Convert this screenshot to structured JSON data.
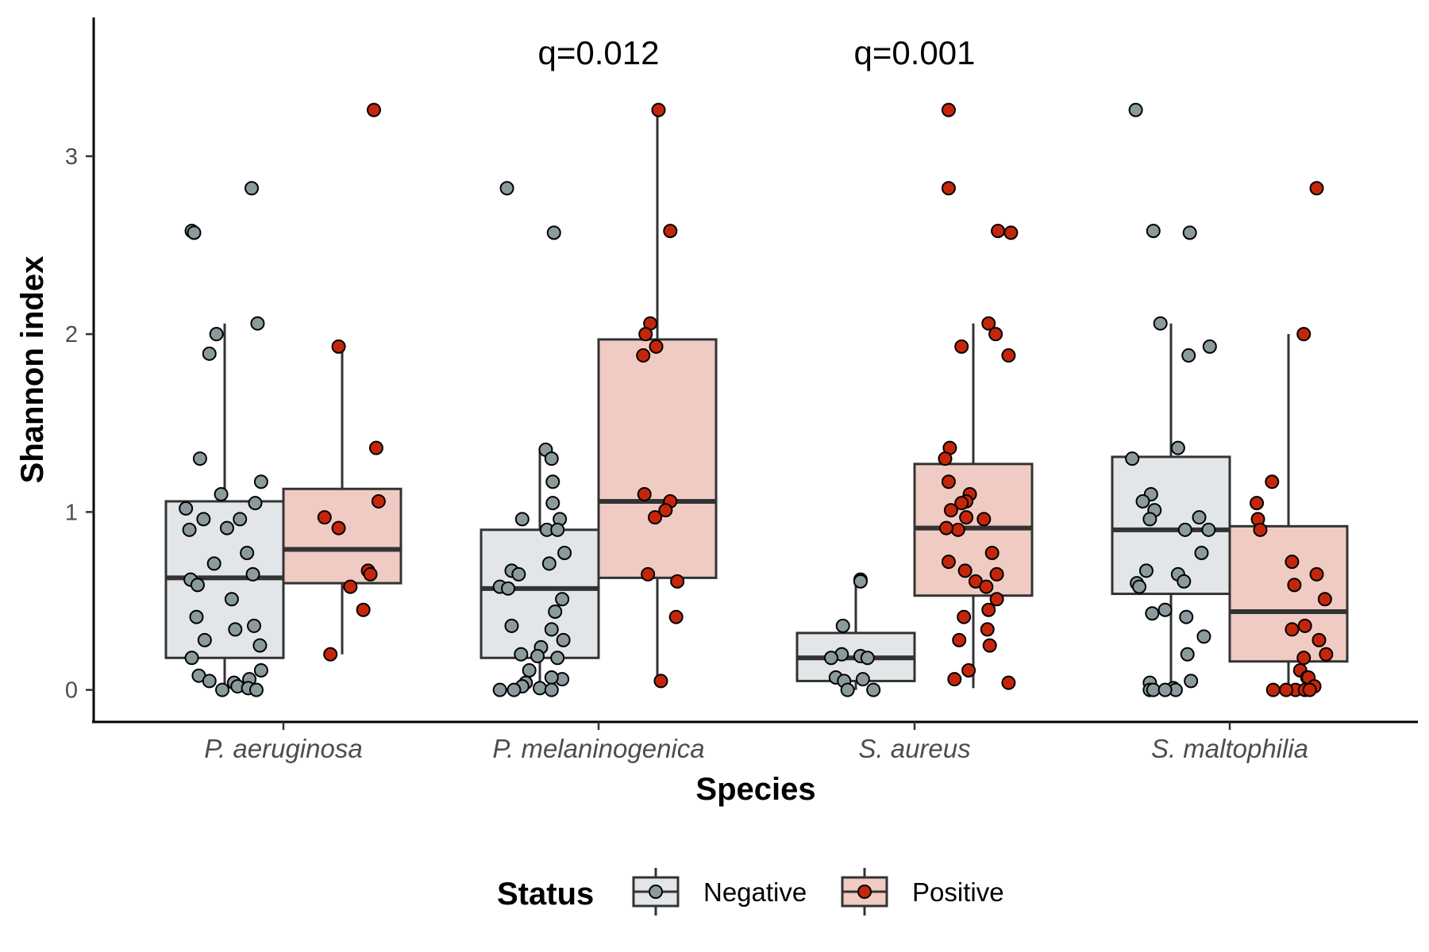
{
  "chart_data": {
    "type": "box",
    "xlabel": "Species",
    "ylabel": "Shannon index",
    "ylim": [
      -0.18,
      3.78
    ],
    "yticks": [
      0,
      1,
      2,
      3
    ],
    "categories": [
      "P. aeruginosa",
      "P. melaninogenica",
      "S. aureus",
      "S. maltophilia"
    ],
    "legend": {
      "title": "Status",
      "position": "bottom"
    },
    "annotations": [
      {
        "category": "P. melaninogenica",
        "text": "q=0.012",
        "y": 3.58
      },
      {
        "category": "S. aureus",
        "text": "q=0.001",
        "y": 3.58
      }
    ],
    "series": [
      {
        "name": "Negative",
        "fill": "#e2e6e8",
        "point_color": "#8b9a9c",
        "boxes": [
          {
            "category": "P. aeruginosa",
            "q1": 0.18,
            "median": 0.63,
            "q3": 1.06,
            "whisker_low": 0.0,
            "whisker_high": 2.06
          },
          {
            "category": "P. melaninogenica",
            "q1": 0.18,
            "median": 0.57,
            "q3": 0.9,
            "whisker_low": 0.0,
            "whisker_high": 1.35
          },
          {
            "category": "S. aureus",
            "q1": 0.05,
            "median": 0.18,
            "q3": 0.32,
            "whisker_low": 0.0,
            "whisker_high": 0.62
          },
          {
            "category": "S. maltophilia",
            "q1": 0.54,
            "median": 0.9,
            "q3": 1.31,
            "whisker_low": 0.01,
            "whisker_high": 2.06
          }
        ],
        "points": [
          {
            "category": "P. aeruginosa",
            "jitter": [
              -0.28,
              -0.26,
              0.23,
              -0.07,
              0.28,
              -0.13,
              -0.21,
              0.31,
              -0.03,
              0.26,
              -0.33,
              -0.18,
              0.13,
              0.02,
              -0.3,
              0.19,
              -0.09,
              0.24,
              -0.29,
              -0.23,
              0.06,
              -0.24,
              0.25,
              0.09,
              -0.17,
              0.3,
              -0.28,
              0.31,
              -0.22,
              0.21,
              -0.13,
              0.08,
              0.11,
              0.2,
              -0.02,
              0.27
            ],
            "y": [
              2.58,
              2.57,
              2.82,
              2.0,
              2.06,
              1.89,
              1.3,
              1.17,
              1.1,
              1.05,
              1.02,
              0.96,
              0.96,
              0.91,
              0.9,
              0.77,
              0.71,
              0.65,
              0.62,
              0.59,
              0.51,
              0.41,
              0.36,
              0.34,
              0.28,
              0.25,
              0.18,
              0.11,
              0.08,
              0.06,
              0.05,
              0.04,
              0.02,
              0.01,
              0.0,
              0.0
            ]
          },
          {
            "category": "P. melaninogenica",
            "jitter": [
              -0.28,
              0.12,
              0.05,
              0.1,
              0.11,
              0.11,
              -0.15,
              0.17,
              0.06,
              0.15,
              0.21,
              0.08,
              -0.24,
              -0.18,
              -0.34,
              -0.27,
              0.19,
              0.13,
              -0.24,
              0.1,
              0.2,
              0.01,
              -0.16,
              -0.02,
              0.15,
              -0.09,
              0.19,
              0.1,
              -0.12,
              -0.15,
              0.0,
              -0.34,
              0.1,
              -0.22
            ],
            "y": [
              2.82,
              2.57,
              1.35,
              1.3,
              1.17,
              1.05,
              0.96,
              0.96,
              0.9,
              0.9,
              0.77,
              0.71,
              0.67,
              0.65,
              0.58,
              0.57,
              0.51,
              0.44,
              0.36,
              0.34,
              0.28,
              0.24,
              0.2,
              0.19,
              0.18,
              0.11,
              0.06,
              0.07,
              0.04,
              0.02,
              0.01,
              0.0,
              0.0,
              0.0
            ]
          },
          {
            "category": "S. aureus",
            "jitter": [
              0.04,
              0.04,
              -0.11,
              -0.12,
              0.04,
              -0.21,
              0.1,
              -0.17,
              0.06,
              -0.1,
              0.15,
              -0.07
            ],
            "y": [
              0.62,
              0.61,
              0.36,
              0.2,
              0.19,
              0.18,
              0.18,
              0.07,
              0.06,
              0.05,
              0.0,
              0.0
            ]
          },
          {
            "category": "S. maltophilia",
            "jitter": [
              -0.3,
              0.16,
              -0.15,
              -0.09,
              0.33,
              0.15,
              0.06,
              -0.33,
              -0.17,
              -0.24,
              -0.14,
              0.24,
              -0.18,
              0.12,
              0.32,
              0.26,
              -0.21,
              0.06,
              0.11,
              -0.29,
              -0.27,
              -0.05,
              -0.16,
              0.13,
              0.28,
              0.14,
              0.17,
              -0.18,
              0.02,
              -0.18,
              -0.15,
              0.04,
              -0.05
            ],
            "y": [
              3.26,
              2.57,
              2.58,
              2.06,
              1.93,
              1.88,
              1.36,
              1.3,
              1.1,
              1.06,
              1.01,
              0.97,
              0.96,
              0.9,
              0.9,
              0.77,
              0.67,
              0.65,
              0.61,
              0.6,
              0.58,
              0.45,
              0.43,
              0.41,
              0.3,
              0.2,
              0.05,
              0.04,
              0.01,
              0.0,
              0.0,
              0.0,
              0.0
            ]
          }
        ]
      },
      {
        "name": "Positive",
        "fill": "#f0cbc3",
        "point_color": "#c4260c",
        "boxes": [
          {
            "category": "P. aeruginosa",
            "q1": 0.6,
            "median": 0.79,
            "q3": 1.13,
            "whisker_low": 0.2,
            "whisker_high": 1.93
          },
          {
            "category": "P. melaninogenica",
            "q1": 0.63,
            "median": 1.06,
            "q3": 1.97,
            "whisker_low": 0.05,
            "whisker_high": 3.26
          },
          {
            "category": "S. aureus",
            "q1": 0.53,
            "median": 0.91,
            "q3": 1.27,
            "whisker_low": 0.01,
            "whisker_high": 2.06
          },
          {
            "category": "S. maltophilia",
            "q1": 0.16,
            "median": 0.44,
            "q3": 0.92,
            "whisker_low": 0.01,
            "whisker_high": 2.0
          }
        ],
        "points": [
          {
            "category": "P. aeruginosa",
            "jitter": [
              0.27,
              -0.03,
              0.29,
              0.31,
              -0.15,
              -0.03,
              0.22,
              0.24,
              0.07,
              0.18,
              -0.1
            ],
            "y": [
              3.26,
              1.93,
              1.36,
              1.06,
              0.97,
              0.91,
              0.67,
              0.65,
              0.58,
              0.45,
              0.2
            ]
          },
          {
            "category": "P. melaninogenica",
            "jitter": [
              0.01,
              0.11,
              -0.06,
              -0.1,
              -0.01,
              -0.12,
              0.11,
              -0.11,
              0.07,
              -0.02,
              -0.08,
              0.17,
              0.16,
              0.03
            ],
            "y": [
              3.26,
              2.58,
              2.06,
              2.0,
              1.93,
              1.88,
              1.06,
              1.1,
              1.01,
              0.97,
              0.65,
              0.61,
              0.41,
              0.05
            ]
          },
          {
            "category": "S. aureus",
            "jitter": [
              -0.21,
              -0.21,
              0.21,
              0.32,
              0.13,
              0.19,
              -0.1,
              0.3,
              -0.2,
              -0.24,
              -0.21,
              -0.03,
              -0.06,
              -0.1,
              -0.19,
              -0.06,
              0.09,
              -0.13,
              -0.23,
              0.16,
              -0.21,
              -0.07,
              0.2,
              0.02,
              0.11,
              0.2,
              0.13,
              -0.08,
              0.12,
              -0.12,
              0.14,
              -0.04,
              -0.16,
              0.3
            ],
            "y": [
              3.26,
              2.82,
              2.58,
              2.57,
              2.06,
              2.0,
              1.93,
              1.88,
              1.36,
              1.3,
              1.17,
              1.1,
              1.06,
              1.05,
              1.01,
              0.97,
              0.96,
              0.9,
              0.91,
              0.77,
              0.72,
              0.67,
              0.65,
              0.61,
              0.58,
              0.51,
              0.45,
              0.41,
              0.34,
              0.28,
              0.25,
              0.11,
              0.06,
              0.04
            ]
          },
          {
            "category": "S. maltophilia",
            "jitter": [
              0.24,
              0.13,
              -0.14,
              -0.27,
              -0.26,
              -0.24,
              0.03,
              0.24,
              0.05,
              0.31,
              0.14,
              0.03,
              0.26,
              0.32,
              0.13,
              0.1,
              0.16,
              0.17,
              0.22,
              0.06,
              -0.13,
              -0.02,
              0.14,
              0.18
            ],
            "y": [
              2.82,
              2.0,
              1.17,
              1.05,
              0.96,
              0.9,
              0.72,
              0.65,
              0.59,
              0.51,
              0.36,
              0.34,
              0.28,
              0.2,
              0.18,
              0.11,
              0.07,
              0.07,
              0.02,
              0.0,
              0.0,
              0.0,
              0.0,
              0.0
            ]
          }
        ]
      }
    ]
  }
}
